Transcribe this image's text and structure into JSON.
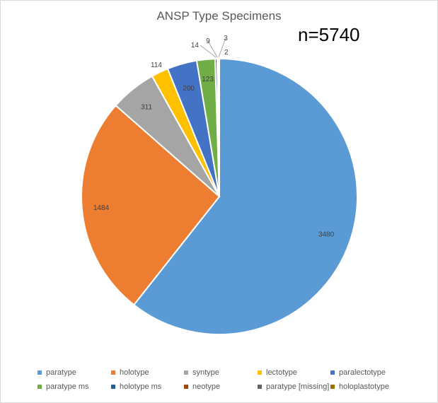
{
  "chart_data": {
    "type": "pie",
    "title": "ANSP Type Specimens",
    "annotation": "n=5740",
    "slices": [
      {
        "name": "paratype",
        "value": 3480,
        "color": "#5b9bd5"
      },
      {
        "name": "holotype",
        "value": 1484,
        "color": "#ed7d31"
      },
      {
        "name": "syntype",
        "value": 311,
        "color": "#a5a5a5"
      },
      {
        "name": "lectotype",
        "value": 114,
        "color": "#ffc000"
      },
      {
        "name": "paralectotype",
        "value": 200,
        "color": "#4472c4"
      },
      {
        "name": "paratype ms",
        "value": 123,
        "color": "#70ad47"
      },
      {
        "name": "holotype ms",
        "value": 14,
        "color": "#255e91"
      },
      {
        "name": "neotype",
        "value": 9,
        "color": "#9e480e"
      },
      {
        "name": "paratype [missing]",
        "value": 3,
        "color": "#636363"
      },
      {
        "name": "holoplastotype",
        "value": 2,
        "color": "#997300"
      }
    ],
    "legend_position": "bottom"
  }
}
